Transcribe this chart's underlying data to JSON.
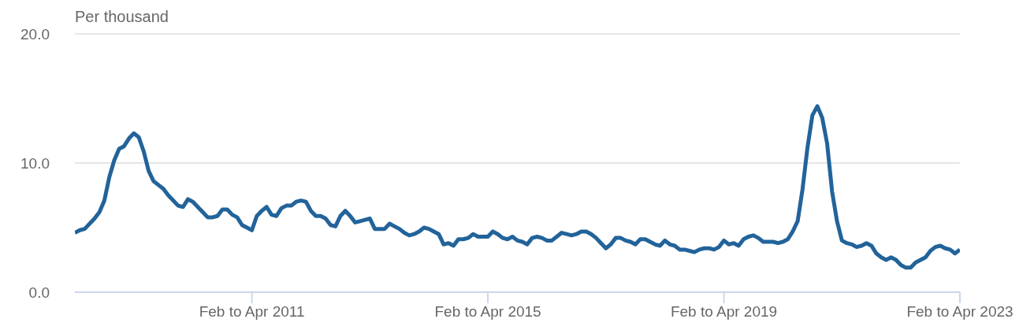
{
  "chart_data": {
    "type": "line",
    "ylabel": "Per thousand",
    "categories": [
      null,
      null,
      null,
      null,
      null,
      null,
      null,
      null,
      null,
      null,
      null,
      null,
      null,
      null,
      null,
      null,
      null,
      null,
      null,
      null,
      null,
      null,
      null,
      null,
      null,
      null,
      null,
      null,
      null,
      null,
      null,
      null,
      null,
      null,
      null,
      null,
      "Feb to Apr 2011",
      null,
      null,
      null,
      null,
      null,
      null,
      null,
      null,
      null,
      null,
      null,
      null,
      null,
      null,
      null,
      null,
      null,
      null,
      null,
      null,
      null,
      null,
      null,
      null,
      null,
      null,
      null,
      null,
      null,
      null,
      null,
      null,
      null,
      null,
      null,
      null,
      null,
      null,
      null,
      null,
      null,
      null,
      null,
      null,
      null,
      null,
      null,
      "Feb to Apr 2015",
      null,
      null,
      null,
      null,
      null,
      null,
      null,
      null,
      null,
      null,
      null,
      null,
      null,
      null,
      null,
      null,
      null,
      null,
      null,
      null,
      null,
      null,
      null,
      null,
      null,
      null,
      null,
      null,
      null,
      null,
      null,
      null,
      null,
      null,
      null,
      null,
      null,
      null,
      null,
      null,
      null,
      null,
      null,
      null,
      null,
      null,
      null,
      "Feb to Apr 2019",
      null,
      null,
      null,
      null,
      null,
      null,
      null,
      null,
      null,
      null,
      null,
      null,
      null,
      null,
      null,
      null,
      null,
      null,
      null,
      null,
      null,
      null,
      null,
      null,
      null,
      null,
      null,
      null,
      null,
      null,
      null,
      null,
      null,
      null,
      null,
      null,
      null,
      null,
      null,
      null,
      null,
      null,
      null,
      null,
      null,
      null,
      null,
      "Feb to Apr 2023"
    ],
    "series": [
      {
        "color": "#22639a",
        "values": [
          4.6,
          4.8,
          4.9,
          5.3,
          5.7,
          6.2,
          7.1,
          8.9,
          10.2,
          11.1,
          11.3,
          11.9,
          12.3,
          12.0,
          10.9,
          9.4,
          8.6,
          8.3,
          8.0,
          7.5,
          7.1,
          6.7,
          6.6,
          7.2,
          7.0,
          6.6,
          6.2,
          5.8,
          5.8,
          5.9,
          6.4,
          6.4,
          6.0,
          5.8,
          5.2,
          5.0,
          4.8,
          5.9,
          6.3,
          6.6,
          6.0,
          5.9,
          6.5,
          6.7,
          6.7,
          7.0,
          7.1,
          7.0,
          6.3,
          5.9,
          5.9,
          5.7,
          5.2,
          5.1,
          5.9,
          6.3,
          5.9,
          5.4,
          5.5,
          5.6,
          5.7,
          4.9,
          4.9,
          4.9,
          5.3,
          5.1,
          4.9,
          4.6,
          4.4,
          4.5,
          4.7,
          5.0,
          4.9,
          4.7,
          4.5,
          3.7,
          3.8,
          3.6,
          4.1,
          4.1,
          4.2,
          4.5,
          4.3,
          4.3,
          4.3,
          4.7,
          4.5,
          4.2,
          4.1,
          4.3,
          4.0,
          3.9,
          3.7,
          4.2,
          4.3,
          4.2,
          4.0,
          4.0,
          4.3,
          4.6,
          4.5,
          4.4,
          4.5,
          4.7,
          4.7,
          4.5,
          4.2,
          3.8,
          3.4,
          3.7,
          4.2,
          4.2,
          4.0,
          3.9,
          3.7,
          4.1,
          4.1,
          3.9,
          3.7,
          3.6,
          4.0,
          3.7,
          3.6,
          3.3,
          3.3,
          3.2,
          3.1,
          3.3,
          3.4,
          3.4,
          3.3,
          3.5,
          4.0,
          3.7,
          3.8,
          3.6,
          4.1,
          4.3,
          4.4,
          4.2,
          3.9,
          3.9,
          3.9,
          3.8,
          3.9,
          4.1,
          4.7,
          5.5,
          8.0,
          11.2,
          13.7,
          14.4,
          13.5,
          11.5,
          7.8,
          5.5,
          4.0,
          3.8,
          3.7,
          3.5,
          3.6,
          3.8,
          3.6,
          3.0,
          2.7,
          2.5,
          2.7,
          2.5,
          2.1,
          1.9,
          1.9,
          2.3,
          2.5,
          2.7,
          3.2,
          3.5,
          3.6,
          3.4,
          3.3,
          3.0,
          3.3
        ]
      }
    ],
    "ylim": [
      0,
      20
    ],
    "yticks": [
      {
        "value": 0,
        "label": "0.0"
      },
      {
        "value": 10,
        "label": "10.0"
      },
      {
        "value": 20,
        "label": "20.0"
      }
    ],
    "grid": "y",
    "legend": false,
    "marker": "none",
    "line_style": "solid"
  }
}
